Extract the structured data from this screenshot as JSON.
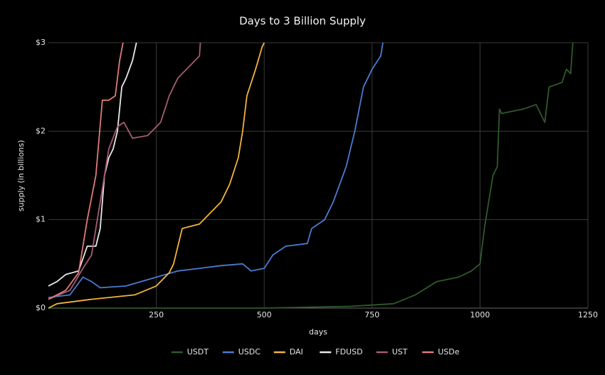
{
  "chart_data": {
    "type": "line",
    "title": "Days to 3 Billion Supply",
    "x_label": "days",
    "y_label": "supply (in billions)",
    "xlim": [
      0,
      1250
    ],
    "xticks": [
      250,
      500,
      750,
      1000,
      1250
    ],
    "ylim": [
      0,
      3
    ],
    "yticks": [
      {
        "value": 0,
        "label": "$0"
      },
      {
        "value": 1,
        "label": "$1"
      },
      {
        "value": 2,
        "label": "$2"
      },
      {
        "value": 3,
        "label": "$3"
      }
    ],
    "grid": true,
    "legend": "bottom",
    "series": [
      {
        "name": "USDT",
        "color": "#2f5a2a",
        "x": [
          0,
          500,
          700,
          800,
          850,
          900,
          950,
          980,
          1000,
          1010,
          1020,
          1030,
          1040,
          1045,
          1050,
          1100,
          1130,
          1150,
          1160,
          1190,
          1200,
          1210,
          1215
        ],
        "values": [
          0,
          0,
          0.02,
          0.05,
          0.15,
          0.3,
          0.35,
          0.42,
          0.5,
          0.9,
          1.2,
          1.5,
          1.6,
          2.25,
          2.2,
          2.25,
          2.3,
          2.1,
          2.5,
          2.55,
          2.7,
          2.65,
          3.0
        ]
      },
      {
        "name": "USDC",
        "color": "#4a7bd0",
        "x": [
          0,
          50,
          80,
          100,
          120,
          180,
          250,
          300,
          350,
          400,
          450,
          470,
          500,
          520,
          550,
          600,
          610,
          640,
          660,
          690,
          710,
          730,
          750,
          770,
          775
        ],
        "values": [
          0.12,
          0.15,
          0.35,
          0.3,
          0.23,
          0.25,
          0.35,
          0.42,
          0.45,
          0.48,
          0.5,
          0.42,
          0.45,
          0.6,
          0.7,
          0.73,
          0.9,
          1.0,
          1.2,
          1.6,
          2.0,
          2.5,
          2.7,
          2.85,
          3.0
        ]
      },
      {
        "name": "DAI",
        "color": "#f2b33d",
        "x": [
          0,
          20,
          100,
          200,
          250,
          280,
          290,
          310,
          350,
          400,
          420,
          440,
          450,
          460,
          480,
          495,
          500
        ],
        "values": [
          0,
          0.05,
          0.1,
          0.15,
          0.25,
          0.4,
          0.5,
          0.9,
          0.95,
          1.2,
          1.4,
          1.7,
          2.0,
          2.4,
          2.7,
          2.95,
          3.0
        ]
      },
      {
        "name": "FDUSD",
        "color": "#e8e8e8",
        "x": [
          0,
          20,
          40,
          70,
          90,
          110,
          120,
          130,
          140,
          150,
          160,
          170,
          180,
          195,
          204
        ],
        "values": [
          0.25,
          0.3,
          0.38,
          0.42,
          0.7,
          0.7,
          0.9,
          1.5,
          1.7,
          1.8,
          2.0,
          2.5,
          2.6,
          2.8,
          3.0
        ]
      },
      {
        "name": "UST",
        "color": "#a65a78",
        "x": [
          0,
          50,
          80,
          100,
          120,
          140,
          160,
          175,
          195,
          230,
          260,
          280,
          300,
          330,
          350,
          352
        ],
        "values": [
          0.1,
          0.2,
          0.45,
          0.6,
          1.2,
          1.8,
          2.05,
          2.1,
          1.92,
          1.95,
          2.1,
          2.4,
          2.6,
          2.75,
          2.85,
          3.0
        ]
      },
      {
        "name": "USDe",
        "color": "#e07b7b",
        "x": [
          0,
          40,
          70,
          90,
          110,
          125,
          140,
          155,
          165,
          173
        ],
        "values": [
          0.1,
          0.2,
          0.4,
          1.0,
          1.5,
          2.35,
          2.35,
          2.4,
          2.8,
          3.0
        ]
      }
    ]
  }
}
